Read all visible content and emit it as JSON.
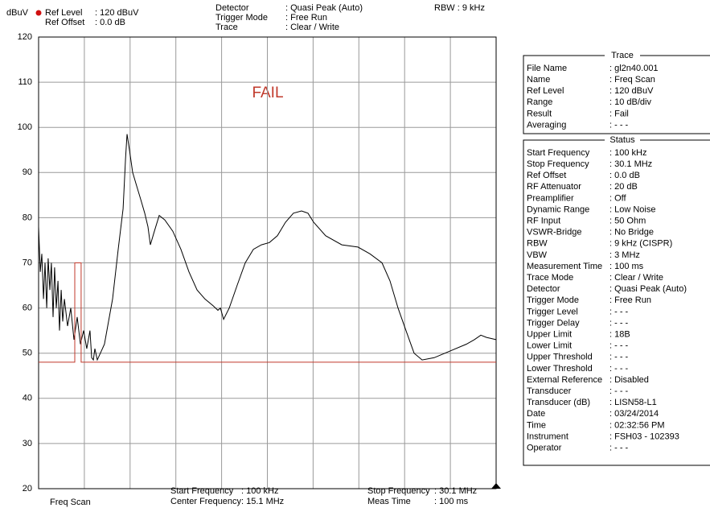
{
  "header": {
    "unit": "dBuV",
    "left": [
      {
        "label": "Ref Level",
        "value": ": 120   dBuV"
      },
      {
        "label": "Ref Offset",
        "value": ":   0.0 dB"
      }
    ],
    "center": [
      {
        "label": "Detector",
        "value": ": Quasi Peak (Auto)"
      },
      {
        "label": "Trigger Mode",
        "value": ": Free Run"
      },
      {
        "label": "Trace",
        "value": ": Clear / Write"
      }
    ],
    "rbw": "RBW : 9 kHz"
  },
  "chart_data": {
    "type": "line",
    "annotation": "FAIL",
    "xlim": [
      0.1,
      30.1
    ],
    "ylim": [
      20,
      120
    ],
    "yticks": [
      20,
      30,
      40,
      50,
      60,
      70,
      80,
      90,
      100,
      110,
      120
    ],
    "grid": true,
    "grid_divisions_x": 10,
    "series": [
      {
        "color": "#000000",
        "x": [
          0.1,
          0.21,
          0.31,
          0.42,
          0.52,
          0.63,
          0.73,
          0.84,
          0.94,
          1.05,
          1.15,
          1.26,
          1.37,
          1.47,
          1.58,
          1.68,
          1.79,
          2.0,
          2.21,
          2.42,
          2.63,
          2.84,
          3.05,
          3.26,
          3.47,
          3.58,
          3.69,
          3.79,
          3.95,
          4.42,
          4.95,
          5.32,
          5.64,
          5.8,
          5.9,
          6.06,
          6.27,
          6.53,
          6.8,
          7.06,
          7.27,
          7.43,
          7.69,
          8.01,
          8.38,
          8.9,
          9.43,
          9.96,
          10.49,
          11.01,
          11.54,
          11.86,
          12.02,
          12.23,
          12.6,
          13.12,
          13.65,
          14.18,
          14.71,
          15.23,
          15.76,
          16.29,
          16.81,
          17.34,
          17.76,
          18.13,
          18.92,
          19.98,
          21.04,
          21.83,
          22.62,
          23.14,
          23.67,
          24.19,
          24.72,
          25.25,
          26.04,
          27.09,
          28.15,
          28.67,
          29.1,
          29.47,
          30.1
        ],
        "values": [
          78,
          68,
          72,
          62,
          70,
          60,
          71,
          64,
          70,
          58,
          69,
          60,
          66,
          55,
          64,
          57,
          62,
          56,
          60,
          53,
          58,
          52,
          55,
          51,
          55,
          49,
          48.5,
          51,
          48.5,
          52,
          62,
          73,
          82,
          93,
          98.5,
          95,
          90,
          87,
          84,
          81,
          78,
          74,
          77,
          80.5,
          79.5,
          77,
          73,
          68,
          64,
          62,
          60.5,
          59.5,
          60,
          57.5,
          60,
          65,
          70,
          73,
          74,
          74.5,
          76,
          79,
          81,
          81.5,
          81,
          79,
          76,
          74,
          73.5,
          72,
          70,
          66,
          60,
          55,
          50,
          48.5,
          49,
          50.5,
          52,
          53,
          54,
          53.5,
          53
        ]
      },
      {
        "color": "#c0392b",
        "x": [
          0.1,
          2.47,
          2.47,
          2.89,
          2.89,
          30.1
        ],
        "values": [
          48,
          48,
          70,
          70,
          48,
          48
        ]
      }
    ]
  },
  "footer": {
    "mode": "Freq Scan",
    "center": [
      {
        "label": "Start Frequency",
        "value": ": 100  kHz"
      },
      {
        "label": "Center Frequency",
        "value": ": 15.1 MHz"
      }
    ],
    "right": [
      {
        "label": "Stop Frequency",
        "value": ": 30.1 MHz"
      },
      {
        "label": "Meas Time",
        "value": ": 100  ms"
      }
    ]
  },
  "panel": {
    "trace": {
      "title": "Trace",
      "rows": [
        {
          "label": "File Name",
          "value": ": gl2n40.001"
        },
        {
          "label": "Name",
          "value": ": Freq Scan"
        },
        {
          "label": "Ref Level",
          "value": ": 120   dBuV"
        },
        {
          "label": "Range",
          "value": ": 10 dB/div"
        },
        {
          "label": "Result",
          "value": ": Fail"
        },
        {
          "label": "Averaging",
          "value": ": - - -"
        }
      ]
    },
    "status": {
      "title": "Status",
      "rows": [
        {
          "label": "Start Frequency",
          "value": ": 100   kHz"
        },
        {
          "label": "Stop Frequency",
          "value": ":   30.1 MHz"
        },
        {
          "label": "Ref Offset",
          "value": ":     0.0 dB"
        },
        {
          "label": "RF Attenuator",
          "value": ":   20   dB"
        },
        {
          "label": "Preamplifier",
          "value": ": Off"
        },
        {
          "label": "Dynamic Range",
          "value": ": Low Noise"
        },
        {
          "label": "RF Input",
          "value": ":   50   Ohm"
        },
        {
          "label": "VSWR-Bridge",
          "value": ": No Bridge"
        },
        {
          "label": "RBW",
          "value": ":    9   kHz (CISPR)"
        },
        {
          "label": "VBW",
          "value": ":    3   MHz"
        },
        {
          "label": "Measurement Time",
          "value": ": 100   ms"
        },
        {
          "label": "Trace Mode",
          "value": ": Clear / Write"
        },
        {
          "label": "Detector",
          "value": ": Quasi Peak (Auto)"
        },
        {
          "label": "Trigger Mode",
          "value": ": Free Run"
        },
        {
          "label": "Trigger Level",
          "value": ": - - -"
        },
        {
          "label": "Trigger Delay",
          "value": ": - - -"
        },
        {
          "label": "Upper Limit",
          "value": ": 18B"
        },
        {
          "label": "Lower Limit",
          "value": ": - - -"
        },
        {
          "label": "Upper Threshold",
          "value": ": - - -"
        },
        {
          "label": "Lower Threshold",
          "value": ": - - -"
        },
        {
          "label": "External Reference",
          "value": ": Disabled"
        },
        {
          "label": "Transducer",
          "value": ": - - -"
        },
        {
          "label": "Transducer (dB)",
          "value": ": LISN58-L1"
        },
        {
          "label": "Date",
          "value": ": 03/24/2014"
        },
        {
          "label": "Time",
          "value": ": 02:32:56 PM"
        },
        {
          "label": "Instrument",
          "value": ": FSH03 - 102393"
        },
        {
          "label": "Operator",
          "value": ": - - -"
        }
      ]
    }
  }
}
